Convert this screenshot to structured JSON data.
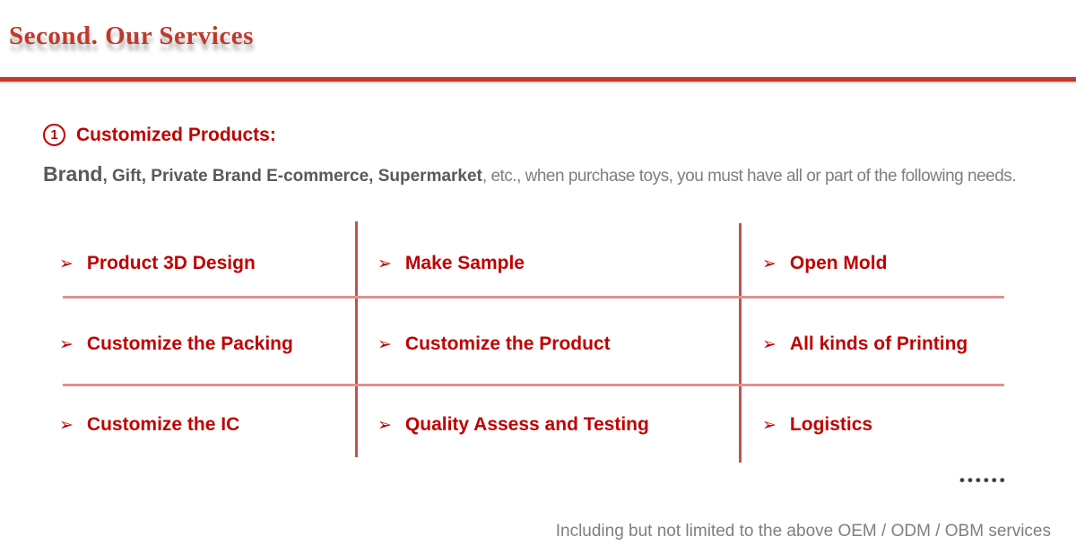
{
  "slide": {
    "title": "Second. Our Services"
  },
  "section": {
    "number": "1",
    "heading": "Customized Products:"
  },
  "intro": {
    "lead": "Brand",
    "bold_segment": ", Gift, Private Brand E-commerce, Supermarket",
    "normal_segment": ", etc., when purchase toys, you must have all or part of the following needs."
  },
  "grid": {
    "bullet": "➢",
    "rows": [
      [
        "Product 3D Design",
        "Make Sample",
        "Open Mold"
      ],
      [
        "Customize the Packing",
        "Customize the Product",
        "All kinds of Printing"
      ],
      [
        "Customize the IC",
        "Quality Assess and Testing",
        "Logistics"
      ]
    ]
  },
  "ellipsis": "••••••",
  "footer": "Including but not limited to the above OEM / ODM / OBM services",
  "colors": {
    "title_red": "#bf392b",
    "rule_red": "#c0392b",
    "item_red": "#c00000",
    "v_line": "#c4514d",
    "h_line": "#dc938f",
    "text_dark_gray": "#595959",
    "text_gray": "#7f7f7f"
  }
}
